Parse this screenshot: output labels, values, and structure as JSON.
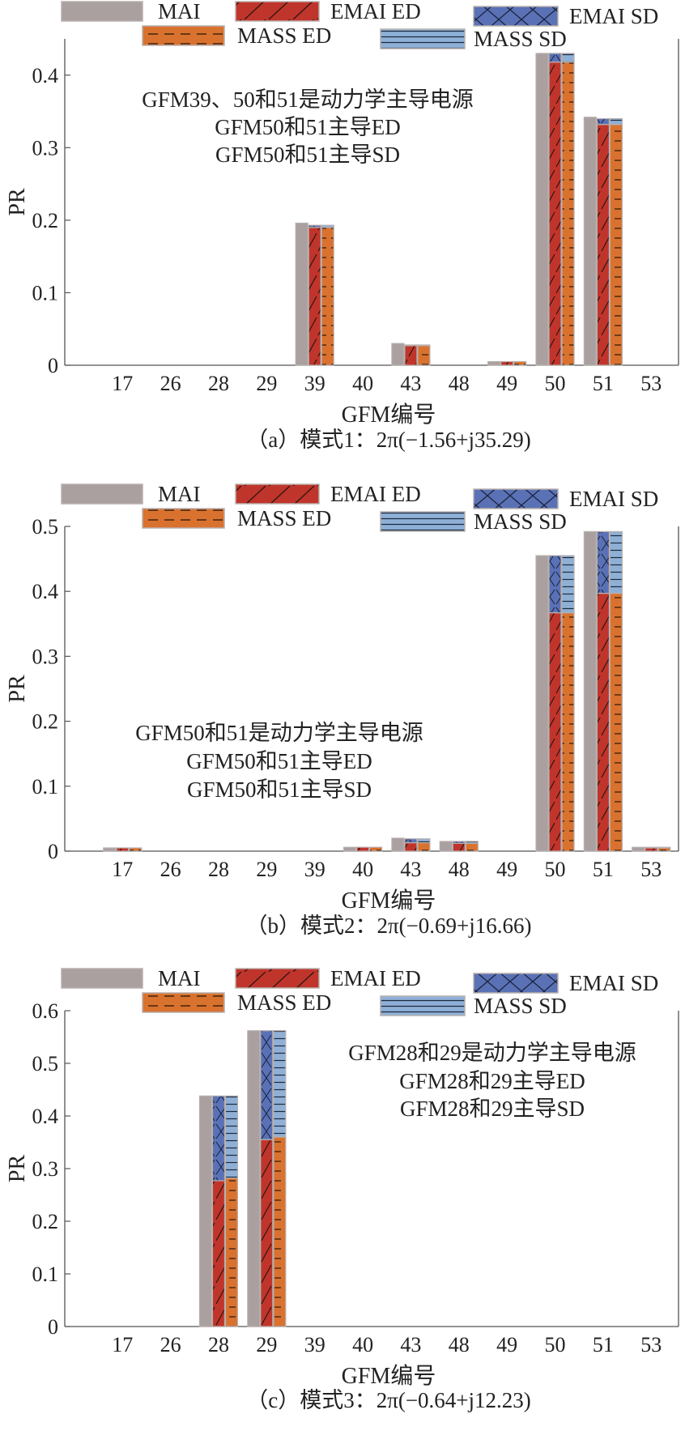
{
  "legend": [
    "MAI",
    "EMAI ED",
    "EMAI SD",
    "MASS ED",
    "MASS SD"
  ],
  "colors": {
    "MAI": "#a9a09f",
    "EMAI ED": "#c0352b",
    "EMAI SD": "#5a72b5",
    "MASS ED": "#d9722f",
    "MASS SD": "#8fb0d6",
    "outline": "#b8b0ae"
  },
  "chart_data": [
    {
      "type": "bar",
      "categories": [
        "17",
        "26",
        "28",
        "29",
        "39",
        "40",
        "43",
        "48",
        "49",
        "50",
        "51",
        "53"
      ],
      "series": [
        {
          "name": "MAI",
          "values": [
            0,
            0,
            0,
            0,
            0.196,
            0,
            0.03,
            0,
            0.005,
            0.43,
            0.342,
            0
          ]
        },
        {
          "name": "EMAI ED",
          "values": [
            0,
            0,
            0,
            0,
            0.19,
            0,
            0.027,
            0,
            0.005,
            0.418,
            0.332,
            0
          ]
        },
        {
          "name": "EMAI SD",
          "values": [
            0,
            0,
            0,
            0,
            0.003,
            0,
            0.001,
            0,
            0,
            0.012,
            0.008,
            0
          ]
        },
        {
          "name": "MASS ED",
          "values": [
            0,
            0,
            0,
            0,
            0.19,
            0,
            0.027,
            0,
            0.005,
            0.418,
            0.332,
            0
          ]
        },
        {
          "name": "MASS SD",
          "values": [
            0,
            0,
            0,
            0,
            0.003,
            0,
            0.001,
            0,
            0,
            0.012,
            0.008,
            0
          ]
        }
      ],
      "ylabel": "PR",
      "xlabel": "GFM编号",
      "ylim": [
        0,
        0.45
      ],
      "yticks": [
        "0",
        "0.1",
        "0.2",
        "0.3",
        "0.4"
      ],
      "annotations": [
        "GFM39、50和51是动力学主导电源",
        "GFM50和51主导ED",
        "GFM50和51主导SD"
      ],
      "caption": "（a）模式1：2π(−1.56+j35.29)"
    },
    {
      "type": "bar",
      "categories": [
        "17",
        "26",
        "28",
        "29",
        "39",
        "40",
        "43",
        "48",
        "49",
        "50",
        "51",
        "53"
      ],
      "series": [
        {
          "name": "MAI",
          "values": [
            0.005,
            0,
            0,
            0,
            0,
            0.006,
            0.02,
            0.015,
            0,
            0.455,
            0.492,
            0.006
          ]
        },
        {
          "name": "EMAI ED",
          "values": [
            0.005,
            0,
            0,
            0,
            0,
            0.006,
            0.013,
            0.012,
            0,
            0.367,
            0.397,
            0.005
          ]
        },
        {
          "name": "EMAI SD",
          "values": [
            0,
            0,
            0,
            0,
            0,
            0,
            0.006,
            0.003,
            0,
            0.088,
            0.095,
            0.001
          ]
        },
        {
          "name": "MASS ED",
          "values": [
            0.005,
            0,
            0,
            0,
            0,
            0.006,
            0.013,
            0.012,
            0,
            0.367,
            0.397,
            0.005
          ]
        },
        {
          "name": "MASS SD",
          "values": [
            0,
            0,
            0,
            0,
            0,
            0,
            0.006,
            0.003,
            0,
            0.088,
            0.095,
            0.001
          ]
        }
      ],
      "ylabel": "PR",
      "xlabel": "GFM编号",
      "ylim": [
        0,
        0.5
      ],
      "yticks": [
        "0",
        "0.1",
        "0.2",
        "0.3",
        "0.4",
        "0.5"
      ],
      "annotations": [
        "GFM50和51是动力学主导电源",
        "GFM50和51主导ED",
        "GFM50和51主导SD"
      ],
      "caption": "（b）模式2：2π(−0.69+j16.66)"
    },
    {
      "type": "bar",
      "categories": [
        "17",
        "26",
        "28",
        "29",
        "39",
        "40",
        "43",
        "48",
        "49",
        "50",
        "51",
        "53"
      ],
      "series": [
        {
          "name": "MAI",
          "values": [
            0,
            0,
            0.438,
            0.562,
            0,
            0,
            0,
            0,
            0,
            0,
            0,
            0
          ]
        },
        {
          "name": "EMAI ED",
          "values": [
            0,
            0,
            0.277,
            0.355,
            0,
            0,
            0,
            0,
            0,
            0,
            0,
            0
          ]
        },
        {
          "name": "EMAI SD",
          "values": [
            0,
            0,
            0.161,
            0.207,
            0,
            0,
            0,
            0,
            0,
            0,
            0,
            0
          ]
        },
        {
          "name": "MASS ED",
          "values": [
            0,
            0,
            0.282,
            0.36,
            0,
            0,
            0,
            0,
            0,
            0,
            0,
            0
          ]
        },
        {
          "name": "MASS SD",
          "values": [
            0,
            0,
            0.156,
            0.202,
            0,
            0,
            0,
            0,
            0,
            0,
            0,
            0
          ]
        }
      ],
      "ylabel": "PR",
      "xlabel": "GFM编号",
      "ylim": [
        0,
        0.6
      ],
      "yticks": [
        "0",
        "0.1",
        "0.2",
        "0.3",
        "0.4",
        "0.5",
        "0.6"
      ],
      "annotations": [
        "GFM28和29是动力学主导电源",
        "GFM28和29主导ED",
        "GFM28和29主导SD"
      ],
      "caption": "（c）模式3：2π(−0.64+j12.23)"
    }
  ]
}
